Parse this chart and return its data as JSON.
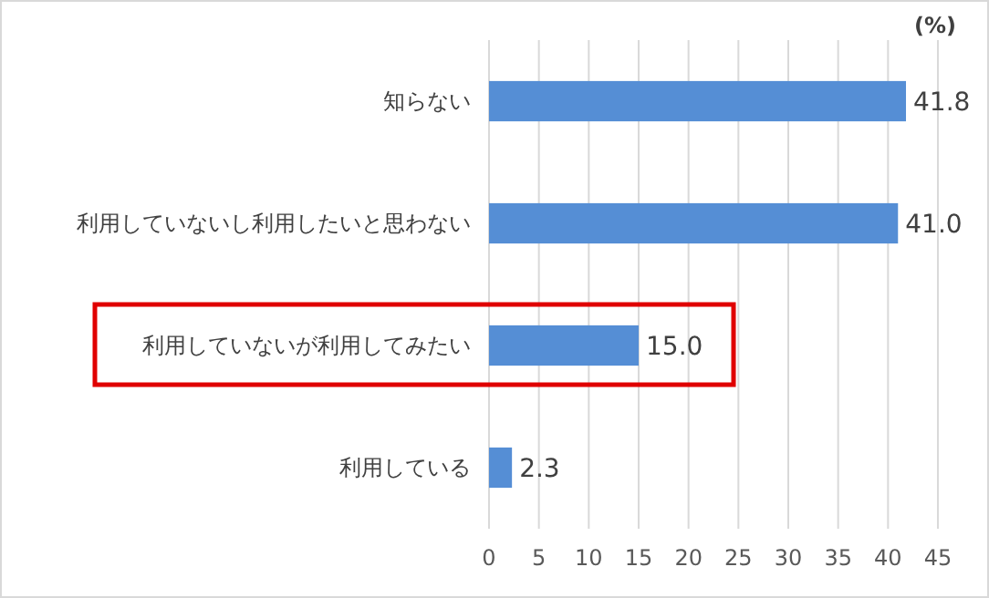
{
  "chart_data": {
    "type": "bar",
    "orientation": "horizontal",
    "xlabel": "(%)",
    "categories": [
      "知らない",
      "利用していないし利用したいと思わない",
      "利用していないが利用してみたい",
      "利用している"
    ],
    "values": [
      41.8,
      41.0,
      15.0,
      2.3
    ],
    "value_labels": [
      "41.8",
      "41.0",
      "15.0",
      "2.3"
    ],
    "color": "#558ed5",
    "xlim": [
      0,
      45
    ],
    "xticks": [
      0,
      5,
      10,
      15,
      20,
      25,
      30,
      35,
      40,
      45
    ],
    "grid": "x"
  }
}
